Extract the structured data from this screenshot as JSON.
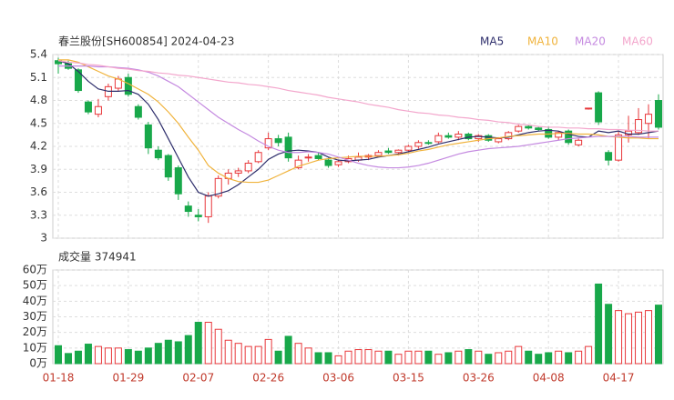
{
  "chart_data": [
    {
      "type": "candlestick",
      "title": "春兰股份[SH600854] 2024-04-23",
      "categories": [
        "01-18",
        null,
        null,
        null,
        null,
        null,
        null,
        "01-29",
        null,
        null,
        null,
        null,
        null,
        null,
        "02-07",
        null,
        null,
        null,
        null,
        null,
        null,
        "02-26",
        null,
        null,
        null,
        null,
        null,
        null,
        "03-06",
        null,
        null,
        null,
        null,
        null,
        null,
        "03-15",
        null,
        null,
        null,
        null,
        null,
        null,
        "03-26",
        null,
        null,
        null,
        null,
        null,
        null,
        "04-08",
        null,
        null,
        null,
        null,
        null,
        null,
        "04-17",
        null,
        null,
        null,
        null
      ],
      "open": [
        5.32,
        5.28,
        5.2,
        4.78,
        4.62,
        4.85,
        4.96,
        5.1,
        4.72,
        4.48,
        4.15,
        4.08,
        3.92,
        3.42,
        3.3,
        3.28,
        3.55,
        3.78,
        3.85,
        3.88,
        4.0,
        4.18,
        4.3,
        4.32,
        3.92,
        4.05,
        4.08,
        4.02,
        3.96,
        4.0,
        4.02,
        4.06,
        4.08,
        4.14,
        4.12,
        4.15,
        4.2,
        4.25,
        4.26,
        4.34,
        4.32,
        4.36,
        4.3,
        4.34,
        4.26,
        4.3,
        4.4,
        4.46,
        4.44,
        4.42,
        4.32,
        4.4,
        4.22,
        4.69,
        4.9,
        4.12,
        4.02,
        4.35,
        4.38,
        4.5,
        4.8
      ],
      "high": [
        5.36,
        5.32,
        5.22,
        4.8,
        4.82,
        5.02,
        5.12,
        5.15,
        4.75,
        4.52,
        4.2,
        4.1,
        3.95,
        3.48,
        3.38,
        3.6,
        3.82,
        3.9,
        3.92,
        4.02,
        4.15,
        4.38,
        4.35,
        4.38,
        4.08,
        4.1,
        4.12,
        4.05,
        4.02,
        4.08,
        4.12,
        4.1,
        4.15,
        4.18,
        4.16,
        4.22,
        4.28,
        4.28,
        4.38,
        4.38,
        4.4,
        4.38,
        4.36,
        4.36,
        4.32,
        4.4,
        4.48,
        4.48,
        4.46,
        4.46,
        4.4,
        4.42,
        4.3,
        4.7,
        4.92,
        4.15,
        4.4,
        4.6,
        4.7,
        4.75,
        4.88
      ],
      "low": [
        5.15,
        5.2,
        4.9,
        4.62,
        4.58,
        4.8,
        4.92,
        4.85,
        4.55,
        4.1,
        4.02,
        3.75,
        3.5,
        3.28,
        3.22,
        3.2,
        3.52,
        3.7,
        3.8,
        3.85,
        3.98,
        4.15,
        4.2,
        4.0,
        3.9,
        4.0,
        4.02,
        3.92,
        3.93,
        3.98,
        4.0,
        4.02,
        4.06,
        4.1,
        4.08,
        4.12,
        4.17,
        4.22,
        4.24,
        4.3,
        4.28,
        4.28,
        4.26,
        4.26,
        4.24,
        4.28,
        4.38,
        4.42,
        4.4,
        4.3,
        4.28,
        4.22,
        4.2,
        4.68,
        4.48,
        3.95,
        4.0,
        4.25,
        4.35,
        4.3,
        4.42
      ],
      "close": [
        5.28,
        5.22,
        4.93,
        4.65,
        4.72,
        4.98,
        5.08,
        4.88,
        4.58,
        4.18,
        4.05,
        3.8,
        3.58,
        3.35,
        3.28,
        3.55,
        3.78,
        3.85,
        3.88,
        3.98,
        4.12,
        4.3,
        4.25,
        4.05,
        4.02,
        4.06,
        4.04,
        3.95,
        4.0,
        4.04,
        4.06,
        4.08,
        4.12,
        4.12,
        4.15,
        4.2,
        4.25,
        4.24,
        4.34,
        4.32,
        4.36,
        4.3,
        4.34,
        4.28,
        4.3,
        4.38,
        4.46,
        4.44,
        4.42,
        4.32,
        4.38,
        4.25,
        4.28,
        4.7,
        4.52,
        4.02,
        4.35,
        4.4,
        4.55,
        4.62,
        4.45
      ],
      "up_color": "#e8373a",
      "down_color": "#18a84a",
      "series": [
        {
          "name": "MA5",
          "color": "#2d2d6b",
          "values": [
            5.32,
            5.28,
            5.18,
            5.05,
            4.95,
            4.92,
            4.92,
            4.93,
            4.88,
            4.75,
            4.55,
            4.3,
            4.05,
            3.8,
            3.6,
            3.55,
            3.58,
            3.62,
            3.7,
            3.8,
            3.9,
            4.03,
            4.1,
            4.14,
            4.15,
            4.14,
            4.12,
            4.06,
            4.02,
            4.01,
            4.02,
            4.03,
            4.06,
            4.08,
            4.1,
            4.13,
            4.16,
            4.19,
            4.23,
            4.26,
            4.29,
            4.32,
            4.33,
            4.32,
            4.31,
            4.32,
            4.35,
            4.38,
            4.4,
            4.41,
            4.4,
            4.36,
            4.33,
            4.32,
            4.4,
            4.38,
            4.4,
            4.36,
            4.36,
            4.38,
            4.4
          ]
        },
        {
          "name": "MA10",
          "color": "#f0b33c",
          "values": [
            5.33,
            5.33,
            5.3,
            5.24,
            5.18,
            5.12,
            5.08,
            5.02,
            4.95,
            4.88,
            4.78,
            4.65,
            4.5,
            4.32,
            4.15,
            3.95,
            3.85,
            3.78,
            3.74,
            3.73,
            3.73,
            3.76,
            3.82,
            3.88,
            3.94,
            3.98,
            4.02,
            4.04,
            4.05,
            4.06,
            4.07,
            4.07,
            4.07,
            4.08,
            4.09,
            4.11,
            4.14,
            4.16,
            4.19,
            4.22,
            4.24,
            4.26,
            4.28,
            4.3,
            4.31,
            4.33,
            4.34,
            4.35,
            4.36,
            4.36,
            4.37,
            4.37,
            4.36,
            4.36,
            4.35,
            4.33,
            4.32,
            4.31,
            4.31,
            4.3,
            4.3
          ]
        },
        {
          "name": "MA20",
          "color": "#c489e0",
          "values": [
            5.25,
            5.25,
            5.25,
            5.25,
            5.24,
            5.24,
            5.23,
            5.22,
            5.2,
            5.17,
            5.12,
            5.05,
            4.98,
            4.88,
            4.78,
            4.68,
            4.58,
            4.5,
            4.42,
            4.35,
            4.27,
            4.2,
            4.15,
            4.12,
            4.12,
            4.13,
            4.12,
            4.1,
            4.06,
            4.02,
            3.98,
            3.95,
            3.93,
            3.92,
            3.92,
            3.93,
            3.95,
            3.98,
            4.02,
            4.06,
            4.1,
            4.13,
            4.15,
            4.17,
            4.18,
            4.19,
            4.2,
            4.22,
            4.24,
            4.26,
            4.28,
            4.3,
            4.31,
            4.32,
            4.33,
            4.33,
            4.33,
            4.33,
            4.32,
            4.32,
            4.32
          ]
        },
        {
          "name": "MA60",
          "color": "#f3a6cc",
          "values": [
            5.32,
            5.3,
            5.29,
            5.27,
            5.26,
            5.24,
            5.22,
            5.21,
            5.19,
            5.18,
            5.16,
            5.15,
            5.13,
            5.12,
            5.1,
            5.08,
            5.06,
            5.04,
            5.03,
            5.01,
            5.0,
            4.98,
            4.96,
            4.93,
            4.91,
            4.89,
            4.87,
            4.84,
            4.82,
            4.8,
            4.78,
            4.75,
            4.73,
            4.71,
            4.68,
            4.66,
            4.64,
            4.63,
            4.61,
            4.6,
            4.58,
            4.57,
            4.55,
            4.54,
            4.52,
            4.51,
            4.49,
            4.48,
            4.46,
            4.45,
            4.45,
            4.44,
            4.44,
            4.43,
            4.43,
            4.42,
            4.42,
            4.41,
            4.41,
            4.4,
            4.4
          ]
        }
      ],
      "ylim": [
        3,
        5.4
      ],
      "yticks": [
        5.4,
        5.1,
        4.8,
        4.5,
        4.2,
        3.9,
        3.6,
        3.3,
        3
      ]
    },
    {
      "type": "bar",
      "title": "成交量 374941",
      "values": [
        11.5,
        6.5,
        8,
        12.5,
        11,
        10,
        10,
        9,
        8,
        10,
        13,
        15,
        14,
        18,
        26.5,
        26.5,
        22,
        15,
        13,
        11,
        11,
        15.5,
        8,
        17.5,
        13,
        10,
        7,
        7,
        5,
        8,
        9,
        9,
        8,
        8,
        6,
        8,
        8,
        8,
        6,
        7,
        8,
        9,
        8,
        6,
        7,
        8,
        11,
        8,
        6,
        7,
        8,
        7,
        8,
        11,
        51,
        38,
        34,
        32,
        33,
        34,
        37.5
      ],
      "ylim": [
        0,
        60
      ],
      "yticks": [
        {
          "value": 0,
          "label": "0万"
        },
        {
          "value": 10,
          "label": "10万"
        },
        {
          "value": 20,
          "label": "20万"
        },
        {
          "value": 30,
          "label": "30万"
        },
        {
          "value": 40,
          "label": "40万"
        },
        {
          "value": 50,
          "label": "50万"
        },
        {
          "value": 60,
          "label": "60万"
        }
      ]
    }
  ]
}
